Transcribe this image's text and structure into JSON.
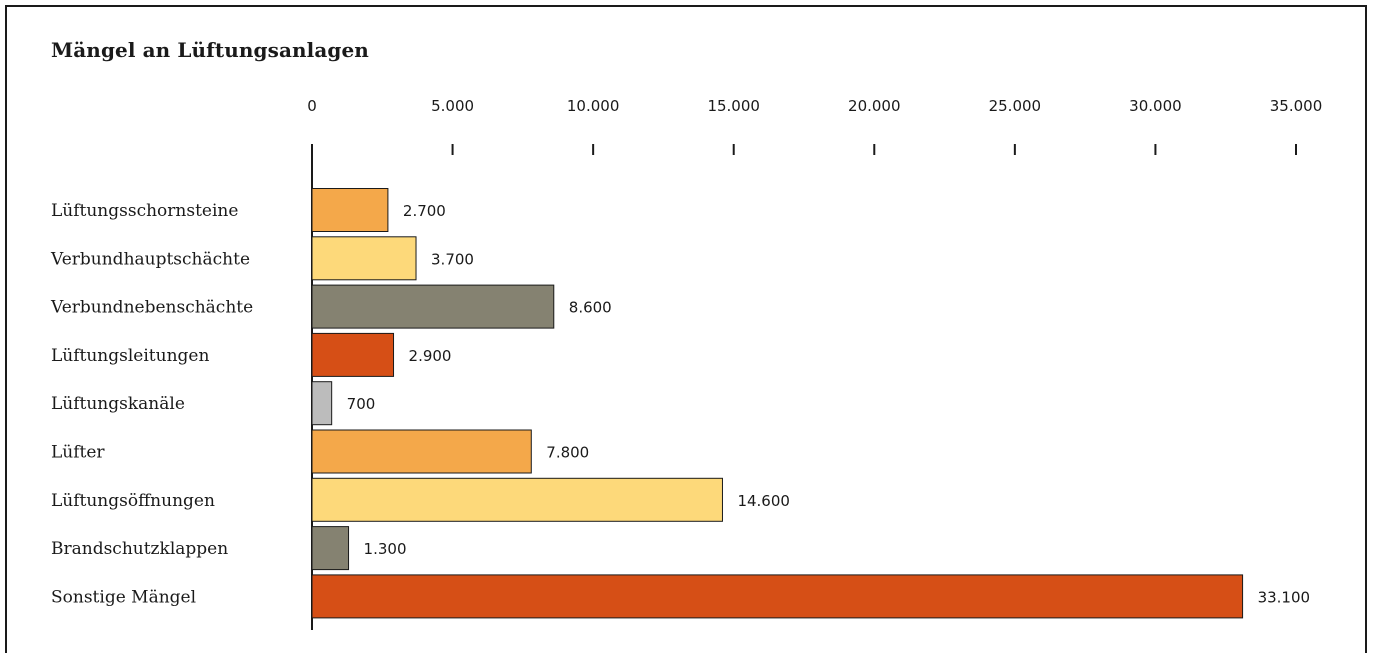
{
  "chart_data": {
    "type": "bar",
    "orientation": "horizontal",
    "title": "Mängel an Lüftungsanlagen",
    "xlabel": "",
    "ylabel": "",
    "xlim": [
      0,
      35000
    ],
    "tick_values": [
      0,
      5000,
      10000,
      15000,
      20000,
      25000,
      30000,
      35000
    ],
    "tick_labels": [
      "0",
      "5.000",
      "10.000",
      "15.000",
      "20.000",
      "25.000",
      "30.000",
      "35.000"
    ],
    "axis_position": "top",
    "grid": false,
    "legend": "none",
    "categories": [
      "Lüftungsschornsteine",
      "Verbundhauptschächte",
      "Verbundnebenschächte",
      "Lüftungsleitungen",
      "Lüftungskanäle",
      "Lüfter",
      "Lüftungsöffnungen",
      "Brandschutzklappen",
      "Sonstige Mängel"
    ],
    "values": [
      2700,
      3700,
      8600,
      2900,
      700,
      7800,
      14600,
      1300,
      33100
    ],
    "value_labels": [
      "2.700",
      "3.700",
      "8.600",
      "2.900",
      "700",
      "7.800",
      "14.600",
      "1.300",
      "33.100"
    ],
    "colors": [
      "#F4A84A",
      "#FDD97A",
      "#858271",
      "#D64F16",
      "#BCBCBC",
      "#F4A84A",
      "#FDD97A",
      "#858271",
      "#D64F16"
    ]
  }
}
